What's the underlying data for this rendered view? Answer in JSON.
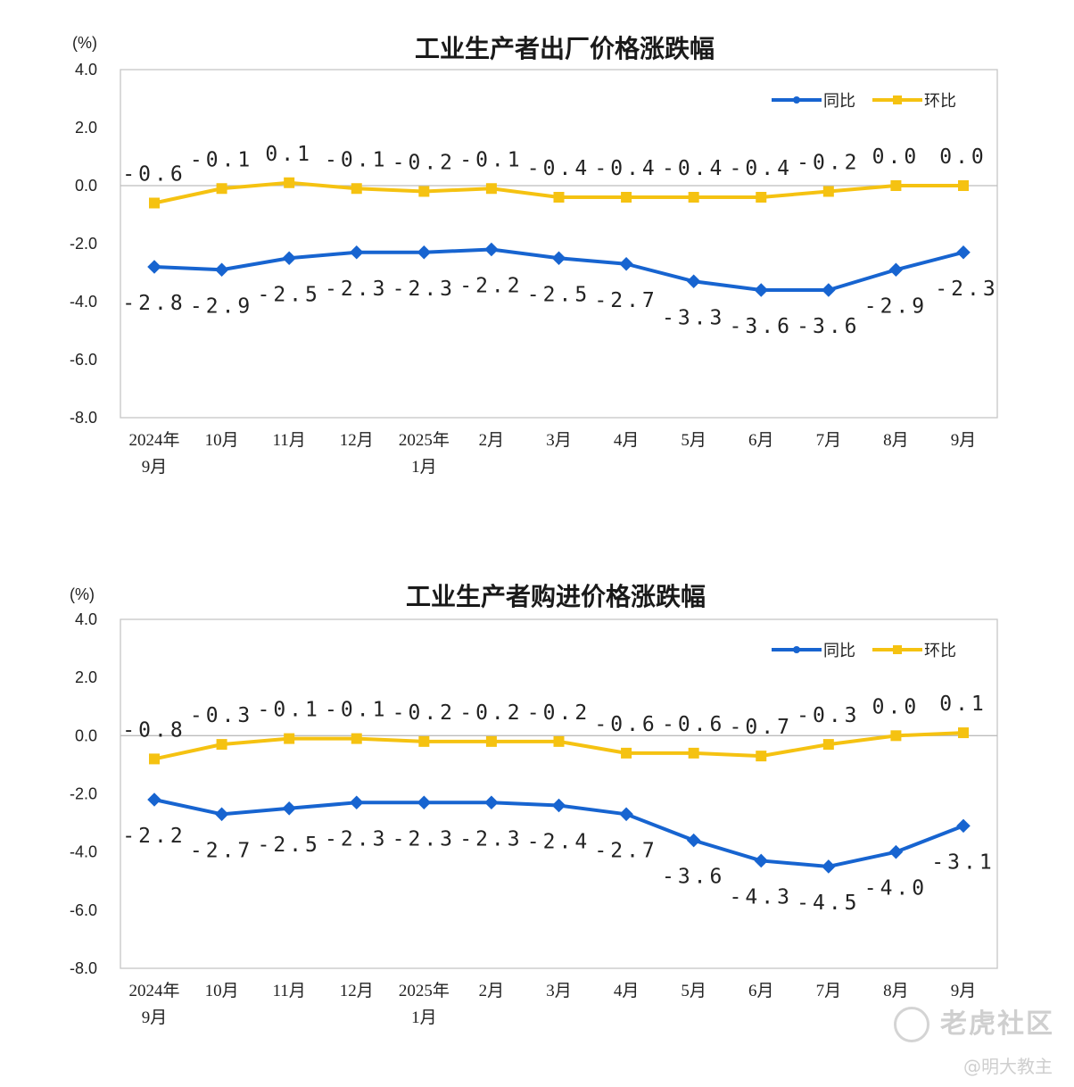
{
  "chart_data": [
    {
      "type": "line",
      "title": "工业生产者出厂价格涨跌幅",
      "ylabel": "(%)",
      "ylim": [
        -8.0,
        4.0
      ],
      "yticks": [
        "4.0",
        "2.0",
        "0.0",
        "-2.0",
        "-4.0",
        "-6.0",
        "-8.0"
      ],
      "categories": [
        [
          "2024年",
          "9月"
        ],
        [
          "10月"
        ],
        [
          "11月"
        ],
        [
          "12月"
        ],
        [
          "2025年",
          "1月"
        ],
        [
          "2月"
        ],
        [
          "3月"
        ],
        [
          "4月"
        ],
        [
          "5月"
        ],
        [
          "6月"
        ],
        [
          "7月"
        ],
        [
          "8月"
        ],
        [
          "9月"
        ]
      ],
      "legend_position": "top-right",
      "grid": false,
      "series": [
        {
          "name": "同比",
          "color": "#1764d0",
          "values": [
            -2.8,
            -2.9,
            -2.5,
            -2.3,
            -2.3,
            -2.2,
            -2.5,
            -2.7,
            -3.3,
            -3.6,
            -3.6,
            -2.9,
            -2.3
          ],
          "labels": [
            "-2.8",
            "-2.9",
            "-2.5",
            "-2.3",
            "-2.3",
            "-2.2",
            "-2.5",
            "-2.7",
            "-3.3",
            "-3.6",
            "-3.6",
            "-2.9",
            "-2.3"
          ]
        },
        {
          "name": "环比",
          "color": "#f5c211",
          "values": [
            -0.6,
            -0.1,
            0.1,
            -0.1,
            -0.2,
            -0.1,
            -0.4,
            -0.4,
            -0.4,
            -0.4,
            -0.2,
            0.0,
            0.0
          ],
          "labels": [
            "-0.6",
            "-0.1",
            "0.1",
            "-0.1",
            "-0.2",
            "-0.1",
            "-0.4",
            "-0.4",
            "-0.4",
            "-0.4",
            "-0.2",
            "0.0",
            "0.0"
          ]
        }
      ]
    },
    {
      "type": "line",
      "title": "工业生产者购进价格涨跌幅",
      "ylabel": "(%)",
      "ylim": [
        -8.0,
        4.0
      ],
      "yticks": [
        "4.0",
        "2.0",
        "0.0",
        "-2.0",
        "-4.0",
        "-6.0",
        "-8.0"
      ],
      "categories": [
        [
          "2024年",
          "9月"
        ],
        [
          "10月"
        ],
        [
          "11月"
        ],
        [
          "12月"
        ],
        [
          "2025年",
          "1月"
        ],
        [
          "2月"
        ],
        [
          "3月"
        ],
        [
          "4月"
        ],
        [
          "5月"
        ],
        [
          "6月"
        ],
        [
          "7月"
        ],
        [
          "8月"
        ],
        [
          "9月"
        ]
      ],
      "legend_position": "top-right",
      "grid": false,
      "series": [
        {
          "name": "同比",
          "color": "#1764d0",
          "values": [
            -2.2,
            -2.7,
            -2.5,
            -2.3,
            -2.3,
            -2.3,
            -2.4,
            -2.7,
            -3.6,
            -4.3,
            -4.5,
            -4.0,
            -3.1
          ],
          "labels": [
            "-2.2",
            "-2.7",
            "-2.5",
            "-2.3",
            "-2.3",
            "-2.3",
            "-2.4",
            "-2.7",
            "-3.6",
            "-4.3",
            "-4.5",
            "-4.0",
            "-3.1"
          ]
        },
        {
          "name": "环比",
          "color": "#f5c211",
          "values": [
            -0.8,
            -0.3,
            -0.1,
            -0.1,
            -0.2,
            -0.2,
            -0.2,
            -0.6,
            -0.6,
            -0.7,
            -0.3,
            0.0,
            0.1
          ],
          "labels": [
            "-0.8",
            "-0.3",
            "-0.1",
            "-0.1",
            "-0.2",
            "-0.2",
            "-0.2",
            "-0.6",
            "-0.6",
            "-0.7",
            "-0.3",
            "0.0",
            "0.1"
          ]
        }
      ]
    }
  ],
  "watermark": {
    "main": "老虎社区",
    "sub": "@明大教主"
  }
}
